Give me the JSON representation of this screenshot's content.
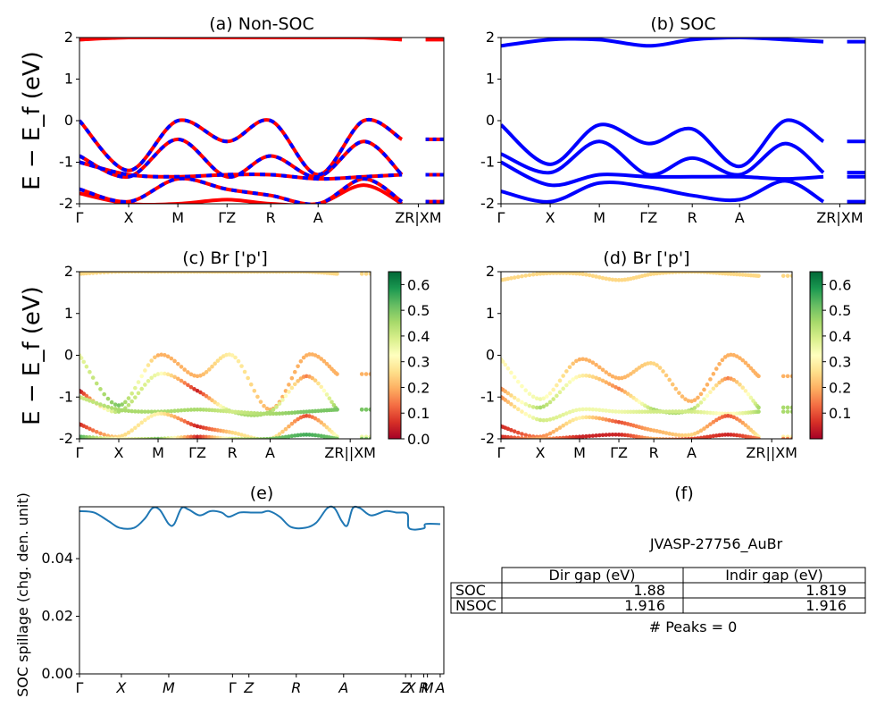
{
  "y_label": "E − E_f (eV)",
  "chart_data": [
    {
      "id": "a",
      "type": "line",
      "title": "(a) Non-SOC",
      "ylim": [
        -2,
        2
      ],
      "yticks": [
        -2,
        -1,
        0,
        1,
        2
      ],
      "xticks": [
        "Γ",
        "X",
        "M",
        "ΓZ",
        "R",
        "A",
        "ZR|XM"
      ],
      "kpath": [
        0,
        0.135,
        0.27,
        0.405,
        0.525,
        0.655,
        0.78,
        0.885,
        0.9,
        0.935,
        0.955,
        1.0
      ],
      "series": [
        {
          "name": "Non-SOC",
          "color": "#ff0000",
          "x": [
            0,
            0.135,
            0.27,
            0.405,
            0.525,
            0.655,
            0.78,
            0.885
          ],
          "bands": [
            [
              0.0,
              -1.2,
              0.0,
              -0.5,
              0.0,
              -1.3,
              0.0,
              -0.45
            ],
            [
              -0.85,
              -1.35,
              -0.45,
              -1.35,
              -0.85,
              -1.35,
              -0.5,
              -1.3
            ],
            [
              -1.0,
              -1.3,
              -1.35,
              -1.3,
              -1.3,
              -1.4,
              -1.35,
              -1.3
            ],
            [
              -1.65,
              -1.95,
              -1.4,
              -1.65,
              -1.8,
              -2.0,
              -1.4,
              -1.95
            ],
            [
              -1.75,
              -2.0,
              -2.0,
              -1.9,
              -2.0,
              -2.0,
              -1.55,
              -2.0
            ],
            [
              1.95,
              2.0,
              2.0,
              2.0,
              2.0,
              2.0,
              2.0,
              1.95
            ]
          ]
        },
        {
          "name": "SOC",
          "color": "#0000ff",
          "x": [
            0,
            0.135,
            0.27,
            0.405,
            0.525,
            0.655,
            0.78,
            0.885
          ],
          "bands": [
            [
              0.0,
              -1.2,
              0.0,
              -0.5,
              0.0,
              -1.3,
              0.0,
              -0.45
            ],
            [
              -0.85,
              -1.35,
              -0.45,
              -1.35,
              -0.85,
              -1.35,
              -0.5,
              -1.3
            ],
            [
              -1.0,
              -1.3,
              -1.35,
              -1.3,
              -1.3,
              -1.4,
              -1.35,
              -1.3
            ],
            [
              -1.65,
              -1.95,
              -1.4,
              -1.65,
              -1.8,
              -2.0,
              -1.4,
              -1.95
            ]
          ]
        }
      ]
    },
    {
      "id": "b",
      "type": "line",
      "title": "(b) SOC",
      "ylim": [
        -2,
        2
      ],
      "yticks": [
        -2,
        -1,
        0,
        1,
        2
      ],
      "xticks": [
        "Γ",
        "X",
        "M",
        "ΓZ",
        "R",
        "A",
        "ZR|XM"
      ],
      "series": [
        {
          "name": "SOC",
          "color": "#0000ff",
          "x": [
            0,
            0.135,
            0.27,
            0.405,
            0.525,
            0.655,
            0.78,
            0.885
          ],
          "bands": [
            [
              -0.1,
              -1.05,
              -0.1,
              -0.55,
              -0.2,
              -1.1,
              0.0,
              -0.5
            ],
            [
              -0.8,
              -1.25,
              -0.5,
              -1.3,
              -0.9,
              -1.3,
              -0.55,
              -1.25
            ],
            [
              -1.0,
              -1.55,
              -1.3,
              -1.35,
              -1.35,
              -1.35,
              -1.4,
              -1.35
            ],
            [
              -1.7,
              -1.95,
              -1.5,
              -1.6,
              -1.8,
              -1.9,
              -1.45,
              -1.95
            ],
            [
              1.8,
              1.95,
              1.95,
              1.8,
              1.95,
              2.0,
              1.95,
              1.9
            ]
          ]
        }
      ]
    },
    {
      "id": "c",
      "type": "scatter",
      "title": "(c)  Br ['p']",
      "ylim": [
        -2,
        2
      ],
      "yticks": [
        -2,
        -1,
        0,
        1,
        2
      ],
      "xticks": [
        "Γ",
        "X",
        "M",
        "ΓZ",
        "R",
        "A",
        "ZR||XM"
      ],
      "colorbar": {
        "min": 0.0,
        "max": 0.65,
        "ticks": [
          "0.0",
          "0.1",
          "0.2",
          "0.3",
          "0.4",
          "0.5",
          "0.6"
        ]
      },
      "bands": [
        {
          "x": [
            0,
            0.135,
            0.27,
            0.405,
            0.525,
            0.655,
            0.78,
            0.885
          ],
          "y": [
            0.0,
            -1.2,
            0.0,
            -0.5,
            0.0,
            -1.3,
            0.0,
            -0.45
          ],
          "c": [
            0.35,
            0.5,
            0.2,
            0.2,
            0.3,
            0.2,
            0.2,
            0.2
          ]
        },
        {
          "x": [
            0,
            0.135,
            0.27,
            0.405,
            0.525,
            0.655,
            0.78,
            0.885
          ],
          "y": [
            -0.85,
            -1.35,
            -0.45,
            -0.85,
            -1.35,
            -1.35,
            -0.5,
            -1.3
          ],
          "c": [
            0.02,
            0.45,
            0.35,
            0.05,
            0.45,
            0.45,
            0.15,
            0.5
          ]
        },
        {
          "x": [
            0,
            0.135,
            0.27,
            0.405,
            0.525,
            0.655,
            0.78,
            0.885
          ],
          "y": [
            -1.0,
            -1.3,
            -1.35,
            -1.3,
            -1.35,
            -1.4,
            -1.35,
            -1.3
          ],
          "c": [
            0.4,
            0.45,
            0.45,
            0.45,
            0.4,
            0.45,
            0.5,
            0.5
          ]
        },
        {
          "x": [
            0,
            0.135,
            0.27,
            0.405,
            0.525,
            0.655,
            0.78,
            0.885
          ],
          "y": [
            -1.65,
            -1.95,
            -1.4,
            -1.7,
            -1.85,
            -2.0,
            -1.45,
            -1.95
          ],
          "c": [
            0.05,
            0.25,
            0.3,
            0.05,
            0.25,
            0.3,
            0.1,
            0.35
          ]
        },
        {
          "x": [
            0,
            0.135,
            0.27,
            0.405,
            0.525,
            0.655,
            0.78,
            0.885
          ],
          "y": [
            -1.95,
            -2.0,
            -2.0,
            -1.95,
            -2.0,
            -2.0,
            -1.9,
            -2.0
          ],
          "c": [
            0.55,
            0.3,
            0.5,
            0.05,
            0.4,
            0.5,
            0.55,
            0.5
          ]
        },
        {
          "x": [
            0,
            0.135,
            0.27,
            0.405,
            0.525,
            0.655,
            0.78,
            0.885
          ],
          "y": [
            1.95,
            2.0,
            2.0,
            2.0,
            2.0,
            2.0,
            2.0,
            1.95
          ],
          "c": [
            0.25,
            0.25,
            0.25,
            0.25,
            0.25,
            0.25,
            0.25,
            0.25
          ]
        }
      ]
    },
    {
      "id": "d",
      "type": "scatter",
      "title": "(d) Br ['p']",
      "ylim": [
        -2,
        2
      ],
      "yticks": [
        -2,
        -1,
        0,
        1,
        2
      ],
      "xticks": [
        "Γ",
        "X",
        "M",
        "ΓZ",
        "R",
        "A",
        "ZR||XM"
      ],
      "colorbar": {
        "min": 0.0,
        "max": 0.65,
        "ticks": [
          "0.1",
          "0.2",
          "0.3",
          "0.4",
          "0.5",
          "0.6"
        ]
      },
      "bands": [
        {
          "x": [
            0,
            0.135,
            0.27,
            0.405,
            0.525,
            0.655,
            0.78,
            0.885
          ],
          "y": [
            -0.1,
            -1.05,
            -0.1,
            -0.55,
            -0.2,
            -1.1,
            0.0,
            -0.5
          ],
          "c": [
            0.3,
            0.35,
            0.2,
            0.2,
            0.25,
            0.2,
            0.2,
            0.2
          ]
        },
        {
          "x": [
            0,
            0.135,
            0.27,
            0.405,
            0.525,
            0.655,
            0.78,
            0.885
          ],
          "y": [
            -0.8,
            -1.25,
            -0.5,
            -0.8,
            -1.3,
            -1.3,
            -0.55,
            -1.25
          ],
          "c": [
            0.15,
            0.45,
            0.3,
            0.15,
            0.45,
            0.45,
            0.15,
            0.45
          ]
        },
        {
          "x": [
            0,
            0.135,
            0.27,
            0.405,
            0.525,
            0.655,
            0.78,
            0.885
          ],
          "y": [
            -1.0,
            -1.55,
            -1.3,
            -1.35,
            -1.35,
            -1.35,
            -1.4,
            -1.35
          ],
          "c": [
            0.15,
            0.4,
            0.35,
            0.35,
            0.4,
            0.4,
            0.3,
            0.45
          ]
        },
        {
          "x": [
            0,
            0.135,
            0.27,
            0.405,
            0.525,
            0.655,
            0.78,
            0.885
          ],
          "y": [
            -1.7,
            -1.95,
            -1.5,
            -1.6,
            -1.8,
            -1.9,
            -1.45,
            -1.95
          ],
          "c": [
            0.05,
            0.15,
            0.3,
            0.1,
            0.2,
            0.25,
            0.1,
            0.3
          ]
        },
        {
          "x": [
            0,
            0.135,
            0.27,
            0.405,
            0.525,
            0.655,
            0.78,
            0.885
          ],
          "y": [
            -1.95,
            -2.0,
            -1.95,
            -1.9,
            -2.0,
            -2.0,
            -1.9,
            -2.0
          ],
          "c": [
            0.05,
            0.2,
            0.05,
            0.05,
            0.2,
            0.1,
            0.05,
            0.15
          ]
        },
        {
          "x": [
            0,
            0.135,
            0.27,
            0.405,
            0.525,
            0.655,
            0.78,
            0.885
          ],
          "y": [
            1.8,
            1.95,
            1.95,
            1.8,
            1.95,
            2.0,
            1.95,
            1.9
          ],
          "c": [
            0.25,
            0.25,
            0.25,
            0.25,
            0.25,
            0.25,
            0.25,
            0.25
          ]
        }
      ]
    },
    {
      "id": "e",
      "type": "line",
      "title": "(e)",
      "ylabel": "SOC spillage (chg. den. unit)",
      "ylim": [
        0.0,
        0.058
      ],
      "yticks": [
        "0.00",
        "0.02",
        "0.04"
      ],
      "xticks": [
        "Γ",
        "X",
        "M",
        "Γ",
        "Z",
        "R",
        "A",
        "Z",
        "X",
        "R",
        "M",
        "A"
      ],
      "series": [
        {
          "name": "",
          "color": "#1f77b4",
          "x": [
            0,
            0.04,
            0.08,
            0.11,
            0.15,
            0.18,
            0.2,
            0.22,
            0.245,
            0.26,
            0.28,
            0.3,
            0.33,
            0.36,
            0.39,
            0.41,
            0.44,
            0.47,
            0.5,
            0.52,
            0.55,
            0.58,
            0.62,
            0.65,
            0.68,
            0.7,
            0.72,
            0.735,
            0.75,
            0.77,
            0.8,
            0.84,
            0.87,
            0.9,
            0.905,
            0.945,
            0.95,
            0.99
          ],
          "y": [
            0.0565,
            0.056,
            0.053,
            0.0507,
            0.0507,
            0.054,
            0.0575,
            0.057,
            0.052,
            0.052,
            0.0575,
            0.057,
            0.055,
            0.0565,
            0.056,
            0.0545,
            0.056,
            0.056,
            0.056,
            0.0565,
            0.0545,
            0.051,
            0.0507,
            0.0525,
            0.0575,
            0.0575,
            0.053,
            0.0515,
            0.0575,
            0.0575,
            0.055,
            0.0565,
            0.056,
            0.0555,
            0.0505,
            0.0505,
            0.052,
            0.052
          ]
        }
      ]
    }
  ],
  "panel_f": {
    "title": "(f)",
    "material": "JVASP-27756_AuBr",
    "columns": [
      "Dir gap (eV)",
      "Indir gap (eV)"
    ],
    "rows": [
      {
        "label": "SOC",
        "dir": "1.88",
        "indir": "1.819"
      },
      {
        "label": "NSOC",
        "dir": "1.916",
        "indir": "1.916"
      }
    ],
    "peaks": "# Peaks = 0"
  }
}
